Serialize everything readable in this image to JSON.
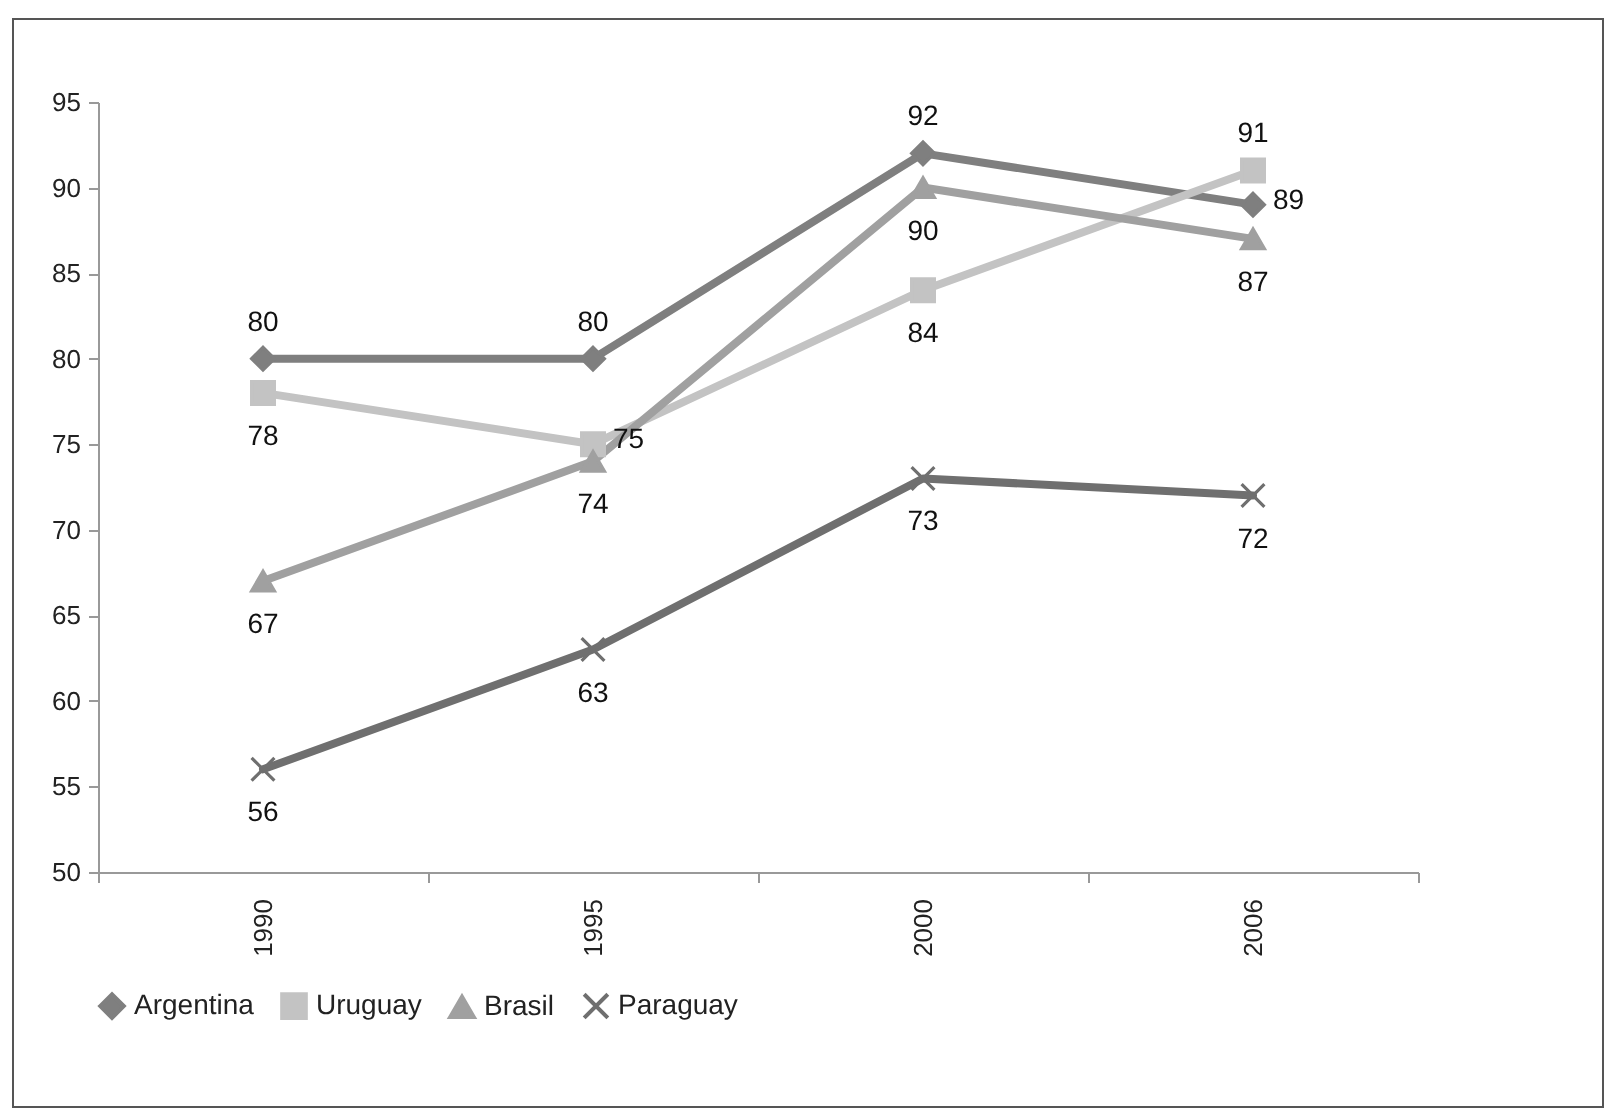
{
  "chart_data": {
    "type": "line",
    "categories": [
      "1990",
      "1995",
      "2000",
      "2006"
    ],
    "series": [
      {
        "name": "Argentina",
        "color": "#7f7f7f",
        "marker": "diamond",
        "values": [
          80,
          80,
          92,
          89
        ]
      },
      {
        "name": "Uruguay",
        "color": "#c3c3c3",
        "marker": "square",
        "values": [
          78,
          75,
          84,
          91
        ]
      },
      {
        "name": "Brasil",
        "color": "#a0a0a0",
        "marker": "triangle",
        "values": [
          67,
          74,
          90,
          87
        ]
      },
      {
        "name": "Paraguay",
        "color": "#6f6f6f",
        "marker": "cross",
        "values": [
          56,
          63,
          73,
          72
        ]
      }
    ],
    "ylim": [
      50,
      95
    ],
    "yticks": [
      50,
      55,
      60,
      65,
      70,
      75,
      80,
      85,
      90,
      95
    ],
    "data_labels": true,
    "legend": "bottom"
  }
}
